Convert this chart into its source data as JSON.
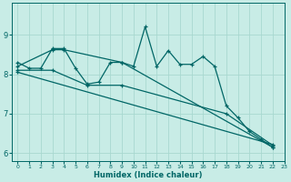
{
  "xlabel": "Humidex (Indice chaleur)",
  "background_color": "#c8ece6",
  "grid_color": "#a8d8d0",
  "line_color": "#006666",
  "xlim": [
    -0.5,
    23
  ],
  "ylim": [
    5.8,
    9.8
  ],
  "xticks": [
    0,
    1,
    2,
    3,
    4,
    5,
    6,
    7,
    8,
    9,
    10,
    11,
    12,
    13,
    14,
    15,
    16,
    17,
    18,
    19,
    20,
    21,
    22,
    23
  ],
  "yticks": [
    6,
    7,
    8,
    9
  ],
  "line_jagged": {
    "x": [
      0,
      1,
      2,
      3,
      4,
      5,
      6,
      7,
      8,
      9,
      10,
      11,
      12,
      13,
      14,
      15,
      16,
      17,
      18,
      19,
      20,
      21,
      22
    ],
    "y": [
      8.3,
      8.15,
      8.15,
      8.65,
      8.65,
      8.15,
      7.75,
      7.8,
      8.3,
      8.3,
      8.2,
      9.2,
      8.2,
      8.6,
      8.25,
      8.25,
      8.45,
      8.2,
      7.2,
      6.9,
      6.55,
      6.35,
      6.15
    ]
  },
  "line_a": {
    "x": [
      0,
      3,
      4,
      9,
      22
    ],
    "y": [
      8.2,
      8.62,
      8.62,
      8.3,
      6.15
    ]
  },
  "line_b": {
    "x": [
      0,
      3,
      6,
      9,
      18,
      22
    ],
    "y": [
      8.1,
      8.1,
      7.72,
      7.72,
      7.0,
      6.2
    ]
  },
  "line_c": {
    "x": [
      0,
      22
    ],
    "y": [
      8.05,
      6.22
    ]
  }
}
